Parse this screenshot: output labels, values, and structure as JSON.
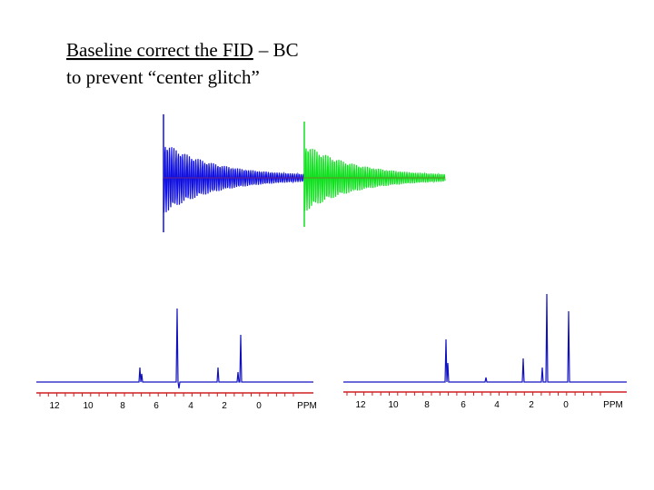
{
  "text": {
    "line1_underlined": "Baseline correct the FID",
    "line1_rest": "– BC",
    "line2": "to prevent “center glitch”"
  },
  "spectra": [
    {
      "ticks": [
        "12",
        "10",
        "8",
        "6",
        "4",
        "2",
        "0"
      ],
      "unit": "PPM"
    },
    {
      "ticks": [
        "12",
        "10",
        "8",
        "6",
        "4",
        "2",
        "0"
      ],
      "unit": "PPM"
    }
  ]
}
